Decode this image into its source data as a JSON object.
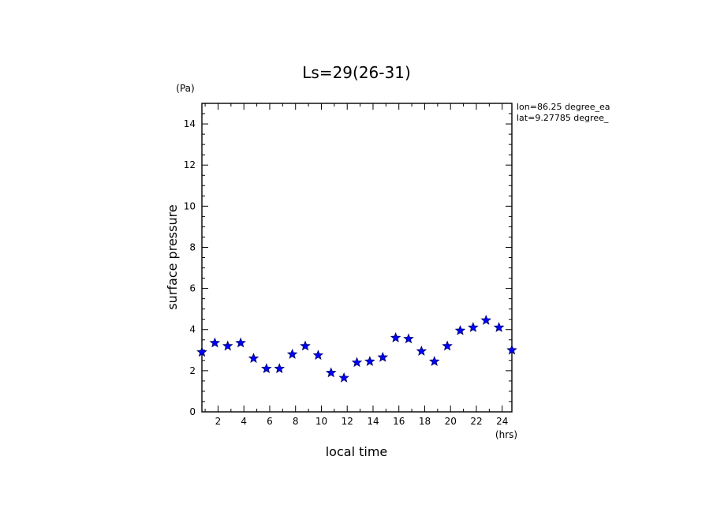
{
  "chart_data": {
    "type": "scatter",
    "title": "Ls=29(26-31)",
    "xlabel": "local time",
    "ylabel": "surface pressure",
    "x_unit": "(hrs)",
    "y_unit": "(Pa)",
    "xlim": [
      0.75,
      24.75
    ],
    "ylim": [
      0,
      15
    ],
    "xticks": [
      2,
      4,
      6,
      8,
      10,
      12,
      14,
      16,
      18,
      20,
      22,
      24
    ],
    "yticks": [
      0,
      2,
      4,
      6,
      8,
      10,
      12,
      14
    ],
    "annotations": [
      "lon=86.25 degree_ea",
      "lat=9.27785 degree_"
    ],
    "marker_color": "#0000ff",
    "series": [
      {
        "name": "surface pressure",
        "x": [
          0.75,
          1.75,
          2.75,
          3.75,
          4.75,
          5.75,
          6.75,
          7.75,
          8.75,
          9.75,
          10.75,
          11.75,
          12.75,
          13.75,
          14.75,
          15.75,
          16.75,
          17.75,
          18.75,
          19.75,
          20.75,
          21.75,
          22.75,
          23.75,
          24.75
        ],
        "y": [
          2.9,
          3.35,
          3.2,
          3.35,
          2.6,
          2.1,
          2.1,
          2.8,
          3.2,
          2.75,
          1.9,
          1.65,
          2.4,
          2.45,
          2.65,
          3.6,
          3.55,
          2.95,
          2.45,
          3.2,
          3.95,
          4.1,
          4.45,
          4.1,
          3.0
        ]
      }
    ]
  }
}
